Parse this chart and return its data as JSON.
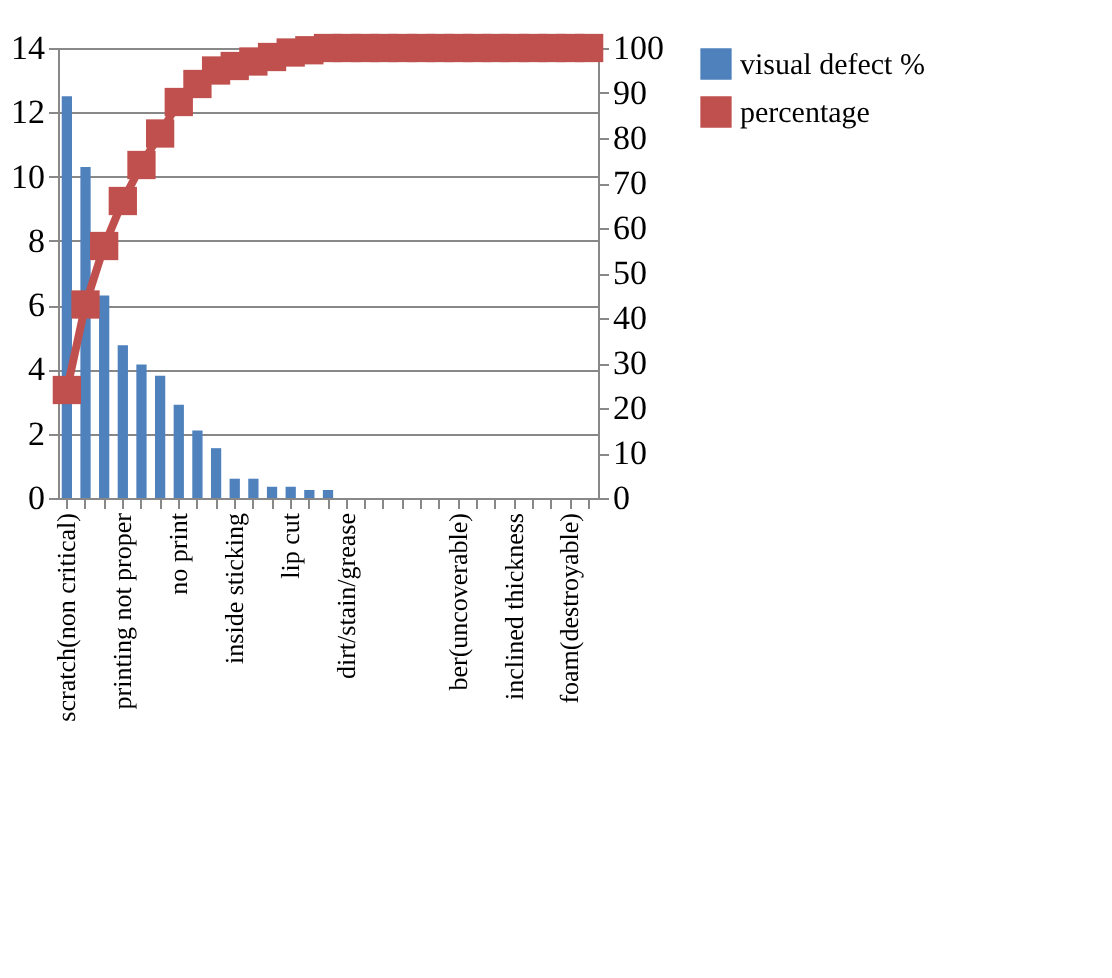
{
  "chart_data": {
    "type": "bar",
    "categories": [
      "scratch(non critical)",
      null,
      null,
      "printing not proper",
      null,
      null,
      "no print",
      null,
      null,
      "inside sticking",
      null,
      null,
      "lip cut",
      null,
      null,
      "dirt/stain/grease",
      null,
      null,
      null,
      null,
      null,
      "ber(uncoverable)",
      null,
      null,
      "inclined thickness",
      null,
      null,
      "foam(destroyable)",
      null
    ],
    "series": [
      {
        "name": "visual defect %",
        "color": "#4f81bd",
        "values": [
          12.5,
          10.3,
          6.3,
          4.75,
          4.15,
          3.8,
          2.9,
          2.1,
          1.55,
          0.6,
          0.6,
          0.35,
          0.35,
          0.25,
          0.25,
          0,
          0,
          0,
          0,
          0,
          0,
          0,
          0,
          0,
          0,
          0,
          0,
          0,
          0
        ]
      },
      {
        "name": "percentage",
        "type": "line",
        "axis": "y2",
        "color": "#c0504d",
        "marker": "square",
        "values": [
          24,
          43,
          56,
          66,
          74,
          81,
          88,
          92,
          95,
          96,
          97,
          98,
          99,
          99.5,
          100,
          100,
          100,
          100,
          100,
          100,
          100,
          100,
          100,
          100,
          100,
          100,
          100,
          100,
          100
        ]
      }
    ],
    "ylim": [
      0,
      14
    ],
    "yticks": [
      0,
      2,
      4,
      6,
      8,
      10,
      12,
      14
    ],
    "y2lim": [
      0,
      100
    ],
    "y2ticks": [
      0,
      10,
      20,
      30,
      40,
      50,
      60,
      70,
      80,
      90,
      100
    ],
    "grid": "y",
    "legend": "right"
  }
}
